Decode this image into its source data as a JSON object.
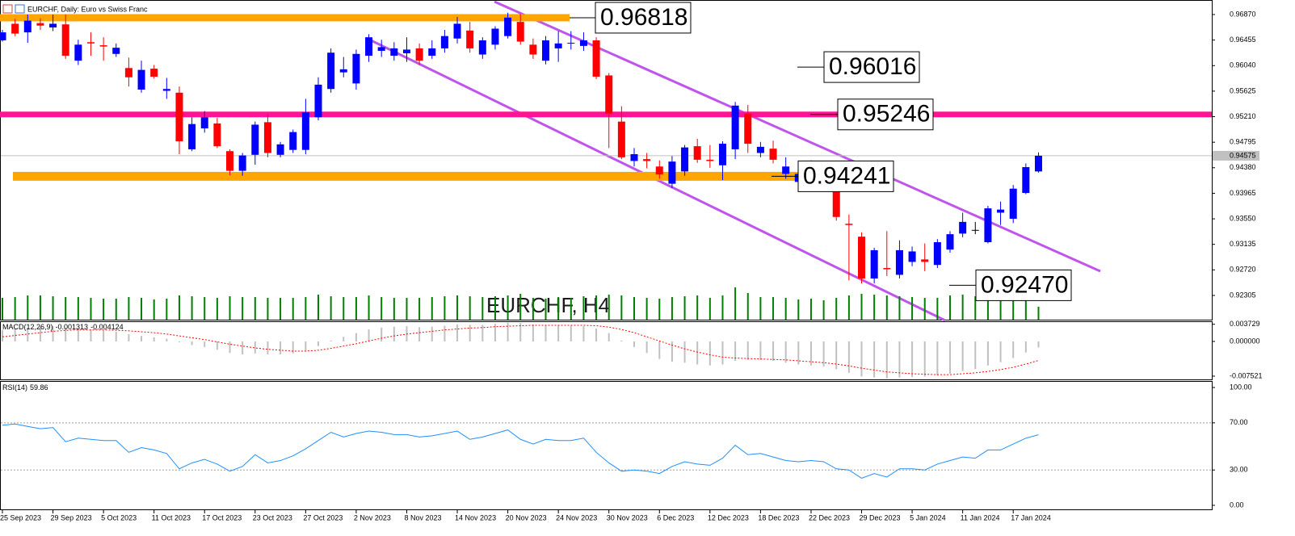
{
  "chart_data": {
    "type": "candlestick",
    "title": "EURCHF, Daily:  Euro vs Swiss Franc",
    "watermark": "EURCHF, H4",
    "categories": [
      "25 Sep 2023",
      null,
      null,
      null,
      "29 Sep 2023",
      null,
      null,
      null,
      "5 Oct 2023",
      null,
      null,
      null,
      "11 Oct 2023",
      null,
      null,
      null,
      "17 Oct 2023",
      null,
      null,
      null,
      "23 Oct 2023",
      null,
      null,
      null,
      "27 Oct 2023",
      null,
      null,
      null,
      "2 Nov 2023",
      null,
      null,
      null,
      "8 Nov 2023",
      null,
      null,
      null,
      "14 Nov 2023",
      null,
      null,
      null,
      "20 Nov 2023",
      null,
      null,
      null,
      "24 Nov 2023",
      null,
      null,
      null,
      "30 Nov 2023",
      null,
      null,
      null,
      "6 Dec 2023",
      null,
      null,
      null,
      "12 Dec 2023",
      null,
      null,
      null,
      "18 Dec 2023",
      null,
      null,
      null,
      "22 Dec 2023",
      null,
      null,
      null,
      "29 Dec 2023",
      null,
      null,
      null,
      "5 Jan 2024",
      null,
      null,
      null,
      "11 Jan 2024",
      null,
      null,
      null,
      "17 Jan 2024",
      null,
      null
    ],
    "open": [
      0.9645,
      0.9672,
      0.9658,
      0.9673,
      0.9666,
      0.9671,
      0.9612,
      0.9642,
      0.9637,
      0.9623,
      0.96,
      0.9565,
      0.9599,
      0.9563,
      0.956,
      0.9468,
      0.9502,
      0.951,
      0.9465,
      0.9433,
      0.9459,
      0.9512,
      0.9459,
      0.9467,
      0.9467,
      0.952,
      0.9566,
      0.9593,
      0.9575,
      0.962,
      0.9628,
      0.962,
      0.9624,
      0.9632,
      0.962,
      0.9632,
      0.9648,
      0.9661,
      0.9622,
      0.9638,
      0.9652,
      0.9675,
      0.9638,
      0.9612,
      0.9632,
      0.964,
      0.9636,
      0.9645,
      0.9588,
      0.9513,
      0.9449,
      0.9452,
      0.944,
      0.9412,
      0.9432,
      0.9473,
      0.9451,
      0.9442,
      0.9468,
      0.9526,
      0.9462,
      0.9469,
      0.9428,
      0.9415,
      0.9411,
      0.9411,
      0.9418,
      0.9347,
      0.9326,
      0.9258,
      0.9275,
      0.9264,
      0.9285,
      0.9289,
      0.928,
      0.9305,
      0.9331,
      0.9337,
      0.9317,
      0.9365,
      0.9355,
      0.9397,
      0.9432
    ],
    "high": [
      0.9662,
      0.968,
      0.9687,
      0.9681,
      0.9687,
      0.9687,
      0.9646,
      0.9658,
      0.965,
      0.964,
      0.9617,
      0.9612,
      0.9605,
      0.9584,
      0.957,
      0.952,
      0.953,
      0.9519,
      0.9468,
      0.9462,
      0.9513,
      0.9525,
      0.948,
      0.95,
      0.955,
      0.9585,
      0.9632,
      0.9618,
      0.963,
      0.9655,
      0.9646,
      0.9642,
      0.965,
      0.964,
      0.9645,
      0.9662,
      0.9683,
      0.9675,
      0.965,
      0.9668,
      0.969,
      0.9688,
      0.9648,
      0.9652,
      0.966,
      0.966,
      0.9658,
      0.965,
      0.9592,
      0.9538,
      0.947,
      0.9462,
      0.945,
      0.9457,
      0.9475,
      0.9485,
      0.9475,
      0.9481,
      0.9545,
      0.954,
      0.948,
      0.9482,
      0.9455,
      0.944,
      0.945,
      0.944,
      0.9427,
      0.9362,
      0.9333,
      0.9308,
      0.9335,
      0.932,
      0.931,
      0.9315,
      0.9322,
      0.9335,
      0.9365,
      0.935,
      0.9376,
      0.9383,
      0.941,
      0.9445,
      0.9463
    ],
    "low": [
      0.9643,
      0.9652,
      0.9641,
      0.9662,
      0.966,
      0.9615,
      0.9605,
      0.962,
      0.9612,
      0.9618,
      0.957,
      0.956,
      0.9583,
      0.955,
      0.946,
      0.9465,
      0.9495,
      0.947,
      0.9426,
      0.9425,
      0.9443,
      0.9455,
      0.9455,
      0.9462,
      0.946,
      0.9515,
      0.956,
      0.9585,
      0.9565,
      0.961,
      0.9618,
      0.9612,
      0.961,
      0.9605,
      0.9615,
      0.9625,
      0.964,
      0.9625,
      0.9615,
      0.963,
      0.9648,
      0.9638,
      0.9615,
      0.9606,
      0.961,
      0.963,
      0.9628,
      0.9582,
      0.947,
      0.9452,
      0.944,
      0.9437,
      0.942,
      0.9405,
      0.9425,
      0.9446,
      0.9438,
      0.9418,
      0.9452,
      0.9462,
      0.9455,
      0.9445,
      0.942,
      0.941,
      0.9405,
      0.9405,
      0.9352,
      0.9255,
      0.925,
      0.925,
      0.9262,
      0.9258,
      0.9278,
      0.927,
      0.9275,
      0.93,
      0.9325,
      0.933,
      0.9315,
      0.9345,
      0.9348,
      0.9395,
      0.943
    ],
    "close": [
      0.9658,
      0.9656,
      0.9677,
      0.9669,
      0.9672,
      0.962,
      0.9638,
      0.964,
      0.9635,
      0.9633,
      0.9585,
      0.9597,
      0.9586,
      0.9566,
      0.9481,
      0.9509,
      0.952,
      0.9473,
      0.9433,
      0.9458,
      0.9508,
      0.9462,
      0.9476,
      0.9496,
      0.9528,
      0.9573,
      0.9625,
      0.9598,
      0.9623,
      0.965,
      0.9634,
      0.9632,
      0.963,
      0.9612,
      0.9632,
      0.9652,
      0.9672,
      0.9632,
      0.9645,
      0.9664,
      0.9682,
      0.9643,
      0.9622,
      0.9645,
      0.964,
      0.9641,
      0.9645,
      0.9586,
      0.9526,
      0.9455,
      0.946,
      0.9449,
      0.9427,
      0.9448,
      0.9471,
      0.9451,
      0.9449,
      0.9477,
      0.9539,
      0.9477,
      0.9472,
      0.9451,
      0.944,
      0.9428,
      0.943,
      0.9425,
      0.9358,
      0.9345,
      0.9258,
      0.9304,
      0.9273,
      0.9304,
      0.9302,
      0.9285,
      0.9317,
      0.933,
      0.935,
      0.9337,
      0.9372,
      0.937,
      0.9404,
      0.9439,
      0.94575
    ],
    "up_color": "#0000ff",
    "down_color": "#ff0000",
    "doji_color": "#000000",
    "volume": [
      27,
      28,
      30,
      30,
      29,
      28,
      28,
      27,
      26,
      26,
      28,
      27,
      25,
      26,
      30,
      29,
      28,
      27,
      29,
      28,
      28,
      27,
      27,
      27,
      28,
      31,
      29,
      28,
      28,
      30,
      28,
      27,
      27,
      27,
      28,
      29,
      30,
      29,
      28,
      29,
      30,
      32,
      27,
      26,
      28,
      27,
      29,
      30,
      31,
      30,
      28,
      27,
      26,
      28,
      29,
      30,
      27,
      30,
      40,
      33,
      28,
      28,
      27,
      25,
      26,
      24,
      27,
      30,
      32,
      31,
      30,
      29,
      28,
      27,
      27,
      30,
      31,
      29,
      30,
      28,
      30,
      29,
      16
    ],
    "volume_color": "#008000",
    "volume_ylim": [
      0,
      100
    ],
    "ylim": [
      0.91898,
      0.97106
    ],
    "yticks": [
      {
        "value": 0.9687,
        "label": "0.96870"
      },
      0.96455,
      {
        "value": 0.9604,
        "label": "0.96040"
      },
      0.95625,
      {
        "value": 0.9521,
        "label": "0.95210"
      },
      0.94795,
      {
        "value": 0.9438,
        "label": "0.94380"
      },
      0.93965,
      {
        "value": 0.9355,
        "label": "0.93550"
      },
      0.93135,
      {
        "value": 0.9272,
        "label": "0.92720"
      },
      0.92305
    ],
    "levels": [
      {
        "value": 0.96818,
        "line_color": "#ffa500"
      },
      {
        "value": 0.96016
      },
      {
        "value": 0.95246,
        "line_color": "#ff1493"
      },
      {
        "value": 0.94241,
        "line_color": "#ffa500"
      },
      {
        "value": 0.9247,
        "label": "0.92470"
      }
    ],
    "macd": {
      "name": "MACD(12,26,9)",
      "values": [
        0.0025,
        0.0027,
        0.003,
        0.0032,
        0.0033,
        0.003,
        0.0028,
        0.0026,
        0.0024,
        0.0021,
        0.0016,
        0.0012,
        0.0009,
        0.0006,
        -0.0002,
        -0.0008,
        -0.0012,
        -0.0018,
        -0.0025,
        -0.0028,
        -0.0026,
        -0.0028,
        -0.0028,
        -0.0026,
        -0.002,
        -0.001,
        0.0002,
        0.001,
        0.0018,
        0.0026,
        0.003,
        0.0032,
        0.0033,
        0.0031,
        0.0032,
        0.0034,
        0.0037,
        0.0036,
        0.0036,
        0.0038,
        0.0041,
        0.004,
        0.0037,
        0.0036,
        0.0035,
        0.0034,
        0.0033,
        0.0028,
        0.0018,
        0.0002,
        -0.0012,
        -0.0025,
        -0.0038,
        -0.0044,
        -0.0046,
        -0.005,
        -0.0052,
        -0.005,
        -0.0042,
        -0.004,
        -0.004,
        -0.0042,
        -0.0046,
        -0.005,
        -0.0052,
        -0.0054,
        -0.006,
        -0.0068,
        -0.0076,
        -0.0078,
        -0.008,
        -0.0078,
        -0.0077,
        -0.0076,
        -0.0074,
        -0.007,
        -0.0064,
        -0.006,
        -0.0052,
        -0.0045,
        -0.0036,
        -0.0024,
        -0.001313
      ],
      "signal": [
        0.001,
        0.0013,
        0.0016,
        0.0019,
        0.0022,
        0.0024,
        0.0025,
        0.0025,
        0.0025,
        0.0024,
        0.0023,
        0.0021,
        0.0019,
        0.0016,
        0.0012,
        0.0008,
        0.0004,
        -0.0001,
        -0.0006,
        -0.001,
        -0.0014,
        -0.0017,
        -0.0019,
        -0.0021,
        -0.0021,
        -0.0019,
        -0.0015,
        -0.001,
        -0.0005,
        0.0001,
        0.0007,
        0.0012,
        0.0016,
        0.0019,
        0.0022,
        0.0025,
        0.0027,
        0.0029,
        0.003,
        0.0032,
        0.0033,
        0.0034,
        0.0035,
        0.0035,
        0.0035,
        0.0035,
        0.0035,
        0.0034,
        0.0031,
        0.0026,
        0.0019,
        0.001,
        0.0001,
        -0.0008,
        -0.0016,
        -0.0023,
        -0.0029,
        -0.0034,
        -0.0036,
        -0.0037,
        -0.0038,
        -0.0039,
        -0.004,
        -0.0042,
        -0.0044,
        -0.0046,
        -0.0049,
        -0.0053,
        -0.0058,
        -0.0062,
        -0.0066,
        -0.0068,
        -0.007,
        -0.0071,
        -0.0072,
        -0.0072,
        -0.007,
        -0.0068,
        -0.0065,
        -0.0061,
        -0.0056,
        -0.0049,
        -0.004124
      ],
      "hist_color": "#c0c0c0",
      "signal_color": "#ff0000",
      "ylim": [
        -0.0084,
        0.00437
      ],
      "yticks": [
        0.003729,
        {
          "value": 0,
          "label": "0.000000"
        },
        -0.007521
      ]
    },
    "rsi": {
      "name": "RSI(14)",
      "values": [
        68,
        69,
        67,
        65,
        66,
        54,
        57,
        56,
        55,
        55,
        45,
        49,
        47,
        44,
        31,
        36,
        39,
        35,
        29,
        33,
        43,
        36,
        38,
        42,
        48,
        55,
        62,
        58,
        61,
        63,
        62,
        60,
        60,
        58,
        59,
        61,
        63,
        56,
        58,
        61,
        64,
        56,
        52,
        56,
        55,
        55,
        57,
        45,
        36,
        29,
        30,
        29,
        27,
        33,
        37,
        35,
        34,
        40,
        51,
        43,
        44,
        41,
        38,
        37,
        38,
        37,
        31,
        30,
        23,
        27,
        24,
        31,
        31,
        30,
        35,
        38,
        41,
        40,
        47,
        47,
        52,
        57,
        59.86
      ],
      "color": "#1e90ff",
      "ylim": [
        -4.1,
        105.5
      ],
      "yticks": [
        {
          "value": 100,
          "label": "100.00"
        },
        {
          "value": 70,
          "label": "70.00"
        },
        {
          "value": 30,
          "label": "30.00"
        },
        {
          "value": 0,
          "label": "0.00"
        }
      ]
    }
  }
}
